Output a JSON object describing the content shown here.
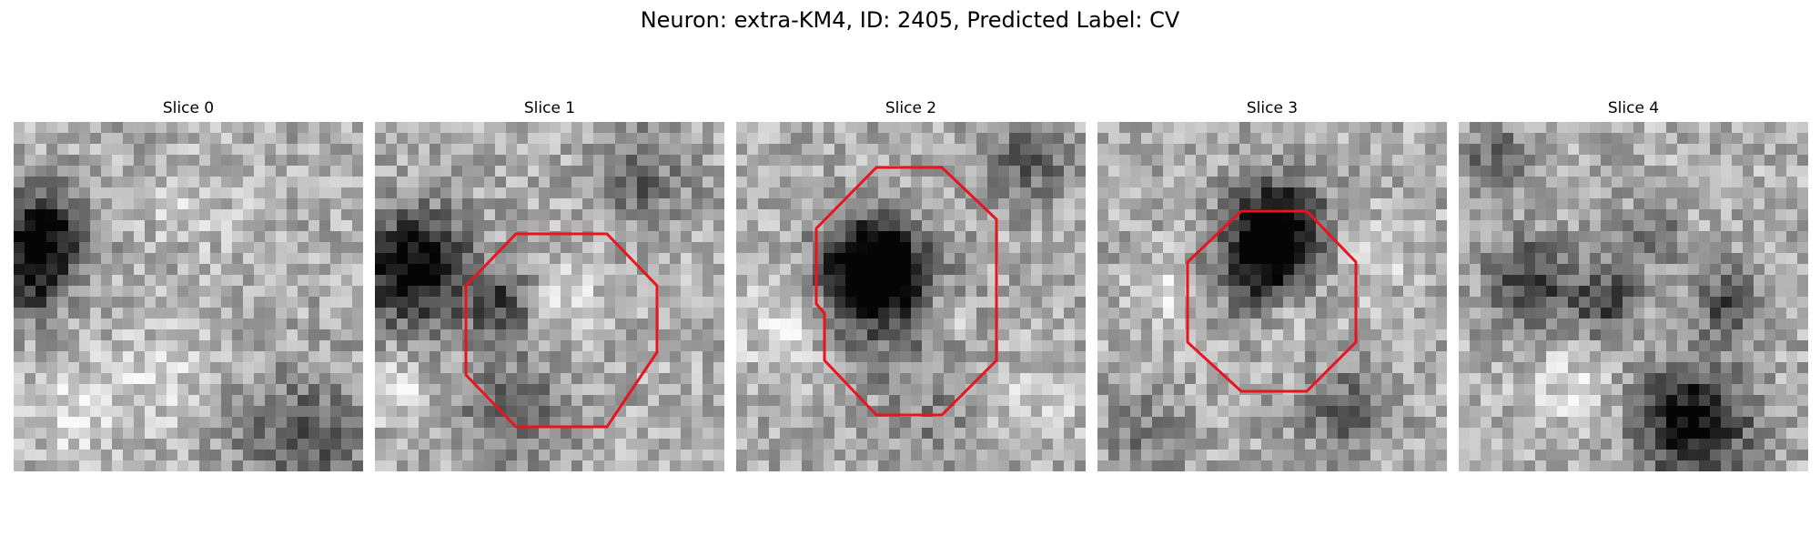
{
  "title": "Neuron: extra-KM4, ID: 2405, Predicted Label: CV",
  "panels": [
    {
      "label": "Slice 0",
      "has_outline": false
    },
    {
      "label": "Slice 1",
      "has_outline": true
    },
    {
      "label": "Slice 2",
      "has_outline": true
    },
    {
      "label": "Slice 3",
      "has_outline": true
    },
    {
      "label": "Slice 4",
      "has_outline": false
    }
  ],
  "colors": {
    "outline": "#e8141e",
    "background": "#ffffff",
    "colormap": "grayscale"
  }
}
